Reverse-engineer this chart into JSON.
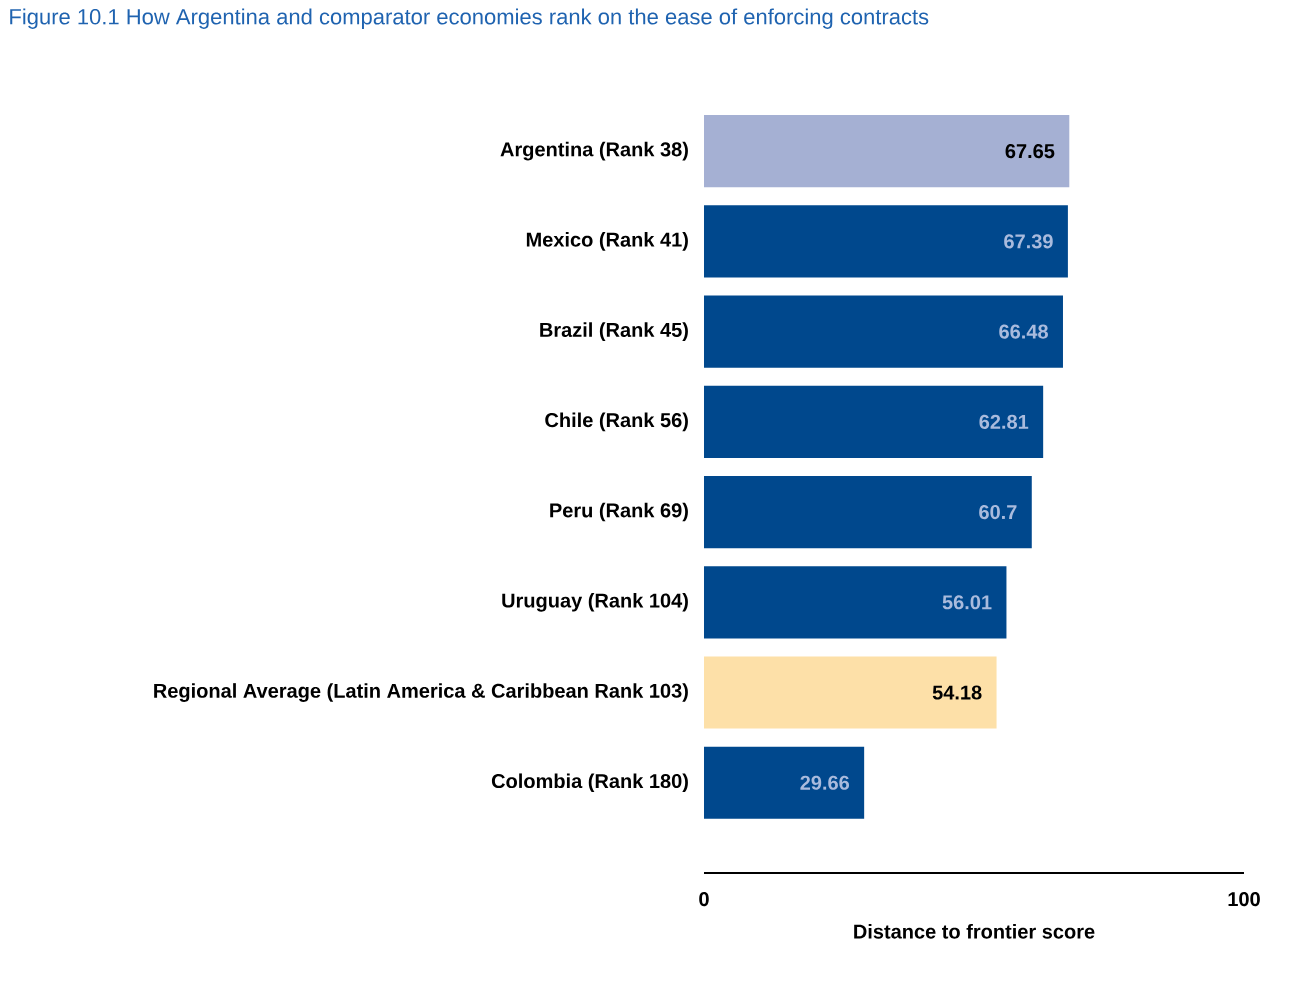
{
  "chart_data": {
    "type": "bar",
    "orientation": "horizontal",
    "title": "Figure 10.1 How Argentina and comparator economies rank on the ease of enforcing contracts",
    "categories": [
      "Argentina (Rank 38)",
      "Mexico (Rank 41)",
      "Brazil (Rank 45)",
      "Chile (Rank 56)",
      "Peru (Rank 69)",
      "Uruguay (Rank 104)",
      "Regional Average (Latin America & Caribbean Rank 103)",
      "Colombia (Rank 180)"
    ],
    "values": [
      67.65,
      67.39,
      66.48,
      62.81,
      60.7,
      56.01,
      54.18,
      29.66
    ],
    "colors": [
      "#a5b0d3",
      "#00488d",
      "#00488d",
      "#00488d",
      "#00488d",
      "#00488d",
      "#fde0a8",
      "#00488d"
    ],
    "xlim": [
      0,
      100
    ],
    "xticks": [
      0,
      100
    ],
    "xlabel": "Distance to frontier score",
    "data_labels": true
  }
}
